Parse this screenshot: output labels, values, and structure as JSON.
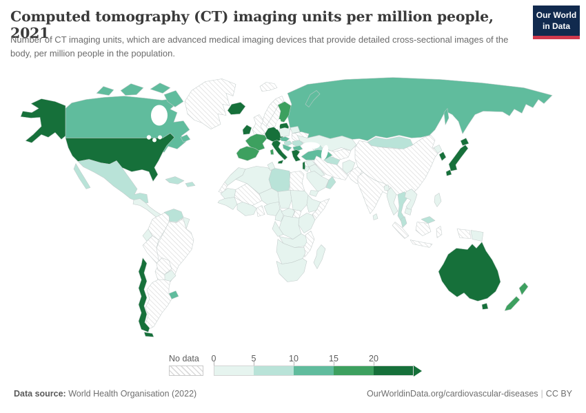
{
  "header": {
    "title": "Computed tomography (CT) imaging units per million people, 2021",
    "subtitle": "Number of CT imaging units, which are advanced medical imaging devices that provide detailed cross-sectional images of the body, per million people in the population.",
    "logo": {
      "line1": "Our World",
      "line2": "in Data",
      "bg_color": "#112a4e",
      "stripe_color": "#d0394d"
    }
  },
  "chart_data": {
    "type": "heatmap",
    "subtype": "choropleth-world-map",
    "title": "Computed tomography (CT) imaging units per million people, 2021",
    "year": "2021",
    "unit": "CT imaging units per million people",
    "legend": {
      "no_data_label": "No data",
      "ticks": [
        "0",
        "5",
        "10",
        "15",
        "20"
      ],
      "bins": [
        {
          "range": "0-5",
          "color": "#e6f4ef"
        },
        {
          "range": "5-10",
          "color": "#b9e3d8"
        },
        {
          "range": "10-15",
          "color": "#60bc9d"
        },
        {
          "range": "15-20",
          "color": "#3da05f"
        },
        {
          "range": "20+",
          "color": "#16703a"
        }
      ],
      "hatch_line_color": "#dadada"
    },
    "countries": {
      "russia": "b3",
      "canada": "b3",
      "usa": "b5",
      "greenland": "nodata",
      "svalbard": "nodata",
      "mexico": "b2",
      "central-america": "b1",
      "cuba": "b2",
      "hispaniola": "b2",
      "colombia": "nodata",
      "venezuela": "b2",
      "guyanas": "b1",
      "ecuador": "b1",
      "peru": "nodata",
      "brazil": "nodata",
      "bolivia": "nodata",
      "paraguay": "b1",
      "uruguay": "b3",
      "argentina": "nodata",
      "chile": "b5",
      "iceland": "b5",
      "norway": "nodata",
      "sweden": "nodata",
      "finland": "b4",
      "baltics": "b5",
      "denmark": "b5",
      "uk": "nodata",
      "ireland": "b5",
      "germany": "b5",
      "france": "b4",
      "iberia": "b4",
      "italy": "b5",
      "sardinia": "b4",
      "poland": "b1",
      "czechia": "b3",
      "hungary": "b2",
      "belarus": "b1",
      "ukraine": "nodata",
      "romania": "b2",
      "balkans": "b3",
      "bulgaria": "b3",
      "greece": "b5",
      "turkey": "b3",
      "caucasus": "b2",
      "syria": "b1",
      "iraq": "b1",
      "israel": "b5",
      "jordan": "b1",
      "saudi-arabia": "b1",
      "yemen": "b1",
      "oman": "b2",
      "iran": "nodata",
      "afghanistan": "b1",
      "pakistan": "nodata",
      "turkmenistan": "b2",
      "uzbekistan": "nodata",
      "kazakhstan": "b1",
      "morocco": "b1",
      "western-sahara": "nodata",
      "algeria": "b1",
      "tunisia": "b1",
      "libya": "b2",
      "egypt": "nodata",
      "mauritania": "b1",
      "mali": "nodata",
      "niger": "b1",
      "chad": "b1",
      "sudan": "b1",
      "senegal": "b1",
      "west-africa": "b1",
      "ghana-benin": "nodata",
      "nigeria": "b1",
      "cameroon": "b1",
      "car": "b1",
      "south-sudan": "nodata",
      "ethiopia": "b1",
      "somalia": "nodata",
      "east-africa": "b1",
      "drc": "b1",
      "gabon-congo": "b1",
      "angola-zambia": "b1",
      "mozambique": "nodata",
      "southern-africa": "b1",
      "south-africa": "b1",
      "madagascar": "b1",
      "india": "nodata",
      "sri-lanka": "b1",
      "bangladesh": "b1",
      "china": "nodata",
      "mongolia": "b2",
      "north-korea": "b1",
      "south-korea": "b5",
      "japan": "b5",
      "myanmar": "b1",
      "thailand": "b2",
      "vietnam": "b1",
      "cambodia": "b1",
      "malaysia": "b2",
      "borneo-malaysia": "b2",
      "indonesia": "nodata",
      "png": "b1",
      "philippines": "b1",
      "australia": "b5",
      "new-zealand": "b4"
    }
  },
  "footer": {
    "datasource_label": "Data source:",
    "datasource_value": " World Health Organisation (2022)",
    "link": "OurWorldinData.org/cardiovascular-diseases",
    "separator": "|",
    "license": "CC BY"
  }
}
